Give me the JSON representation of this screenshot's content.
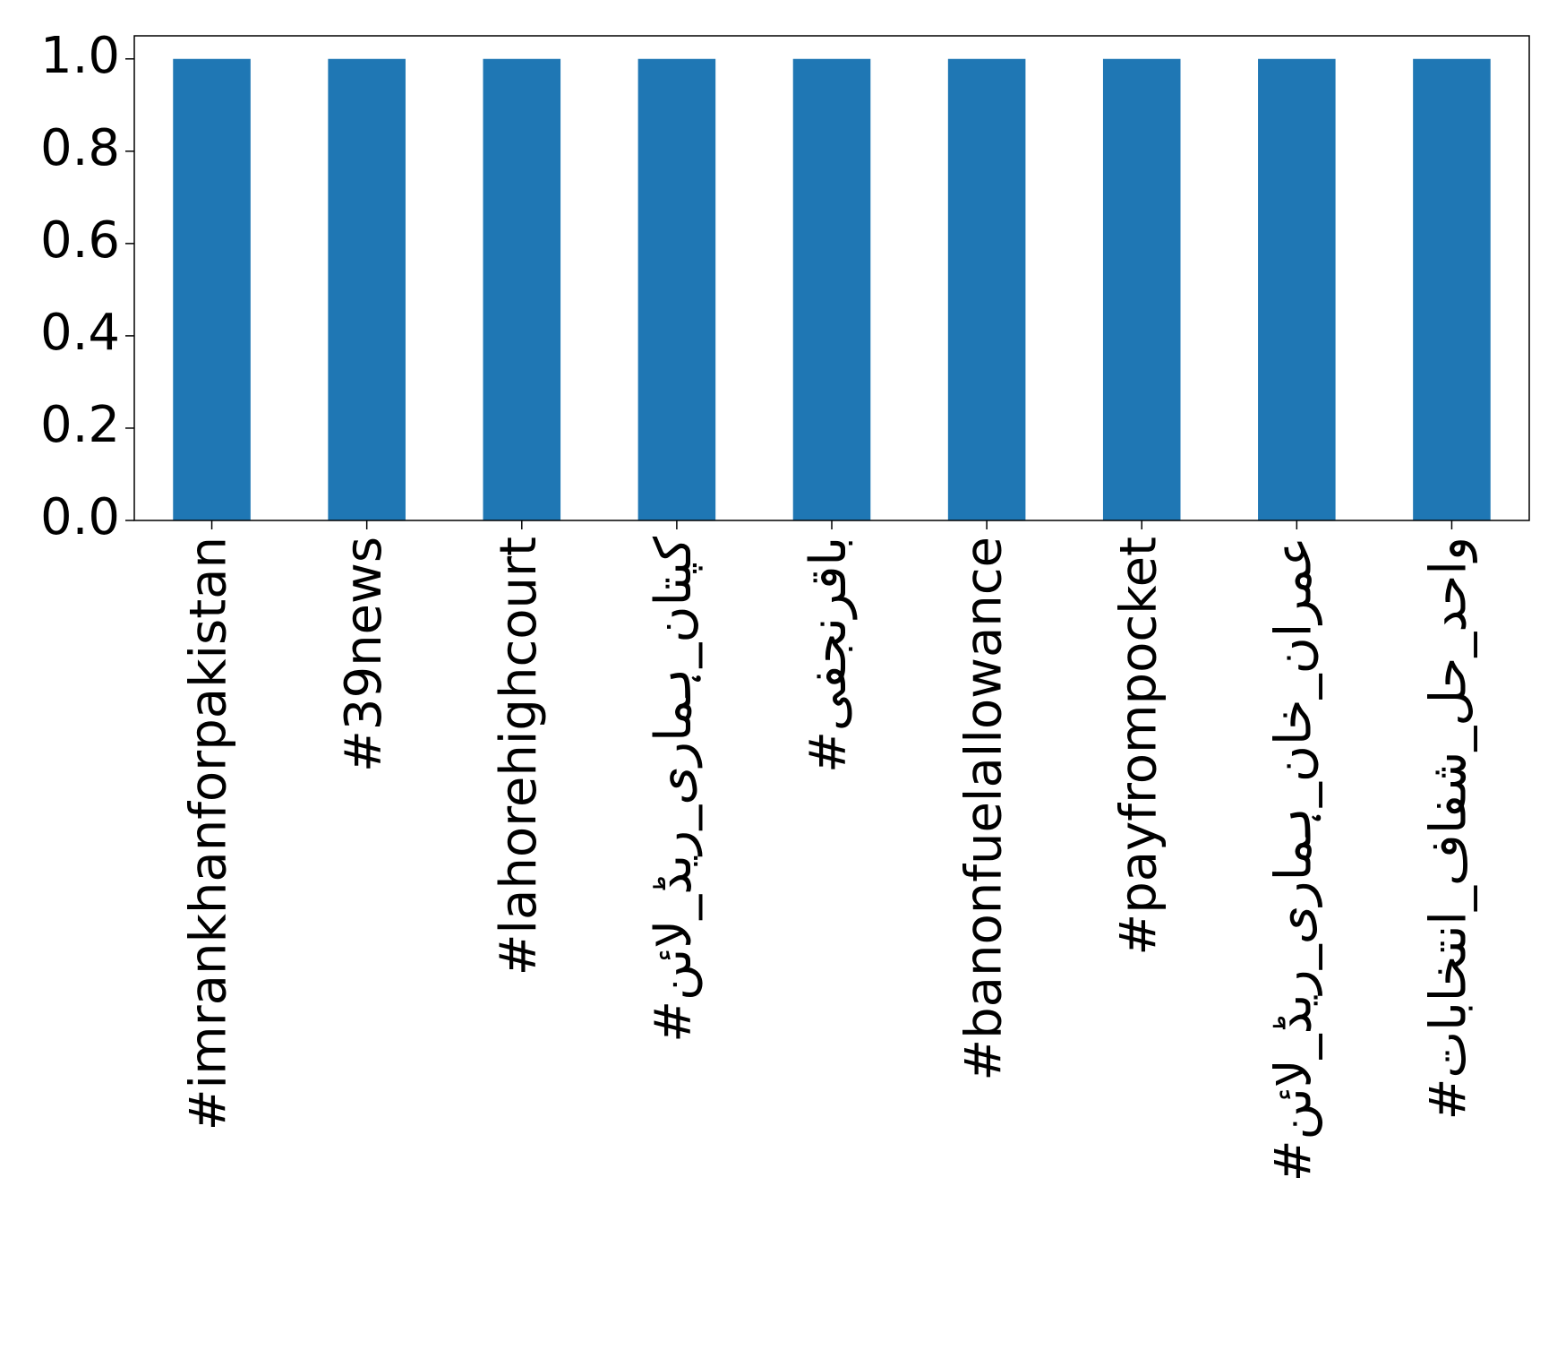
{
  "chart_data": {
    "type": "bar",
    "categories": [
      "#imrankhanforpakistan",
      "#39news",
      "#lahorehighcourt",
      "#کپتان_ہماری_ریڈ_لائن",
      "#باقرنجفی",
      "#banonfuelallowance",
      "#payfrompocket",
      "#عمران_خان_ہماری_ریڈ_لائن",
      "#واحد_حل_شفاف_انتخابات"
    ],
    "values": [
      1.0,
      1.0,
      1.0,
      1.0,
      1.0,
      1.0,
      1.0,
      1.0,
      1.0
    ],
    "color": "#1f77b4",
    "ylim": [
      0,
      1.05
    ],
    "yticks": [
      {
        "value": 0,
        "label": "0.0"
      },
      {
        "value": 0.2,
        "label": "0.2"
      },
      {
        "value": 0.4,
        "label": "0.4"
      },
      {
        "value": 0.6,
        "label": "0.6"
      },
      {
        "value": 0.8,
        "label": "0.8"
      },
      {
        "value": 1,
        "label": "1.0"
      }
    ],
    "grid": false
  }
}
